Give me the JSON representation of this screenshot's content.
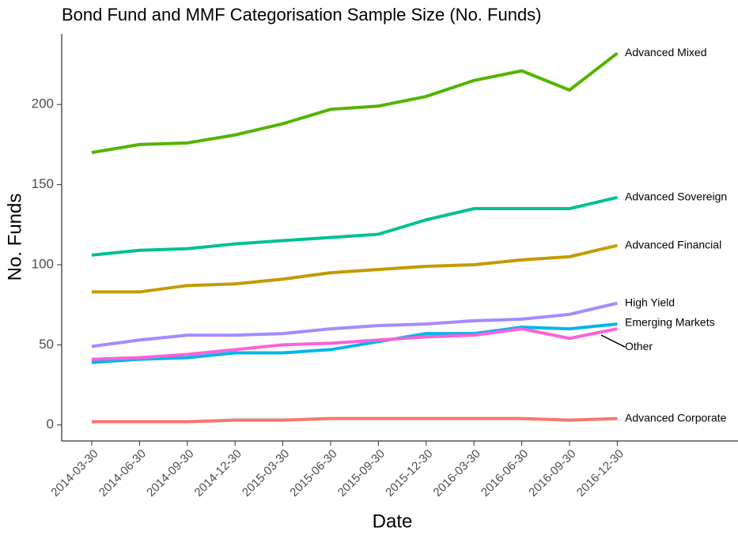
{
  "chart_data": {
    "type": "line",
    "title": "Bond Fund and MMF Categorisation Sample Size (No. Funds)",
    "x_label": "Date",
    "y_label": "No. Funds",
    "categories": [
      "2014-03-30",
      "2014-06-30",
      "2014-09-30",
      "2014-12-30",
      "2015-03-30",
      "2015-06-30",
      "2015-09-30",
      "2015-12-30",
      "2016-03-30",
      "2016-06-30",
      "2016-09-30",
      "2016-12-30"
    ],
    "series": [
      {
        "name": "Advanced Mixed",
        "color": "#53b400",
        "values": [
          170,
          175,
          176,
          181,
          188,
          197,
          199,
          205,
          215,
          221,
          209,
          232
        ]
      },
      {
        "name": "Advanced Sovereign",
        "color": "#00c094",
        "values": [
          106,
          109,
          110,
          113,
          115,
          117,
          119,
          128,
          135,
          135,
          135,
          142
        ]
      },
      {
        "name": "Advanced Financial",
        "color": "#c49a00",
        "values": [
          83,
          83,
          87,
          88,
          91,
          95,
          97,
          99,
          100,
          103,
          105,
          112
        ]
      },
      {
        "name": "High Yield",
        "color": "#a58aff",
        "values": [
          49,
          53,
          56,
          56,
          57,
          60,
          62,
          63,
          65,
          66,
          69,
          76
        ]
      },
      {
        "name": "Emerging Markets",
        "color": "#00b6eb",
        "values": [
          39,
          41,
          42,
          45,
          45,
          47,
          52,
          57,
          57,
          61,
          60,
          63
        ]
      },
      {
        "name": "Other",
        "color": "#fb61d7",
        "values": [
          41,
          42,
          44,
          47,
          50,
          51,
          53,
          55,
          56,
          60,
          54,
          60
        ]
      },
      {
        "name": "Advanced Corporate",
        "color": "#f8766d",
        "values": [
          2,
          2,
          2,
          3,
          3,
          4,
          4,
          4,
          4,
          4,
          3,
          4
        ]
      }
    ],
    "ylim": [
      -10,
      244
    ],
    "yticks": [
      0,
      50,
      100,
      150,
      200
    ],
    "grid": false
  }
}
